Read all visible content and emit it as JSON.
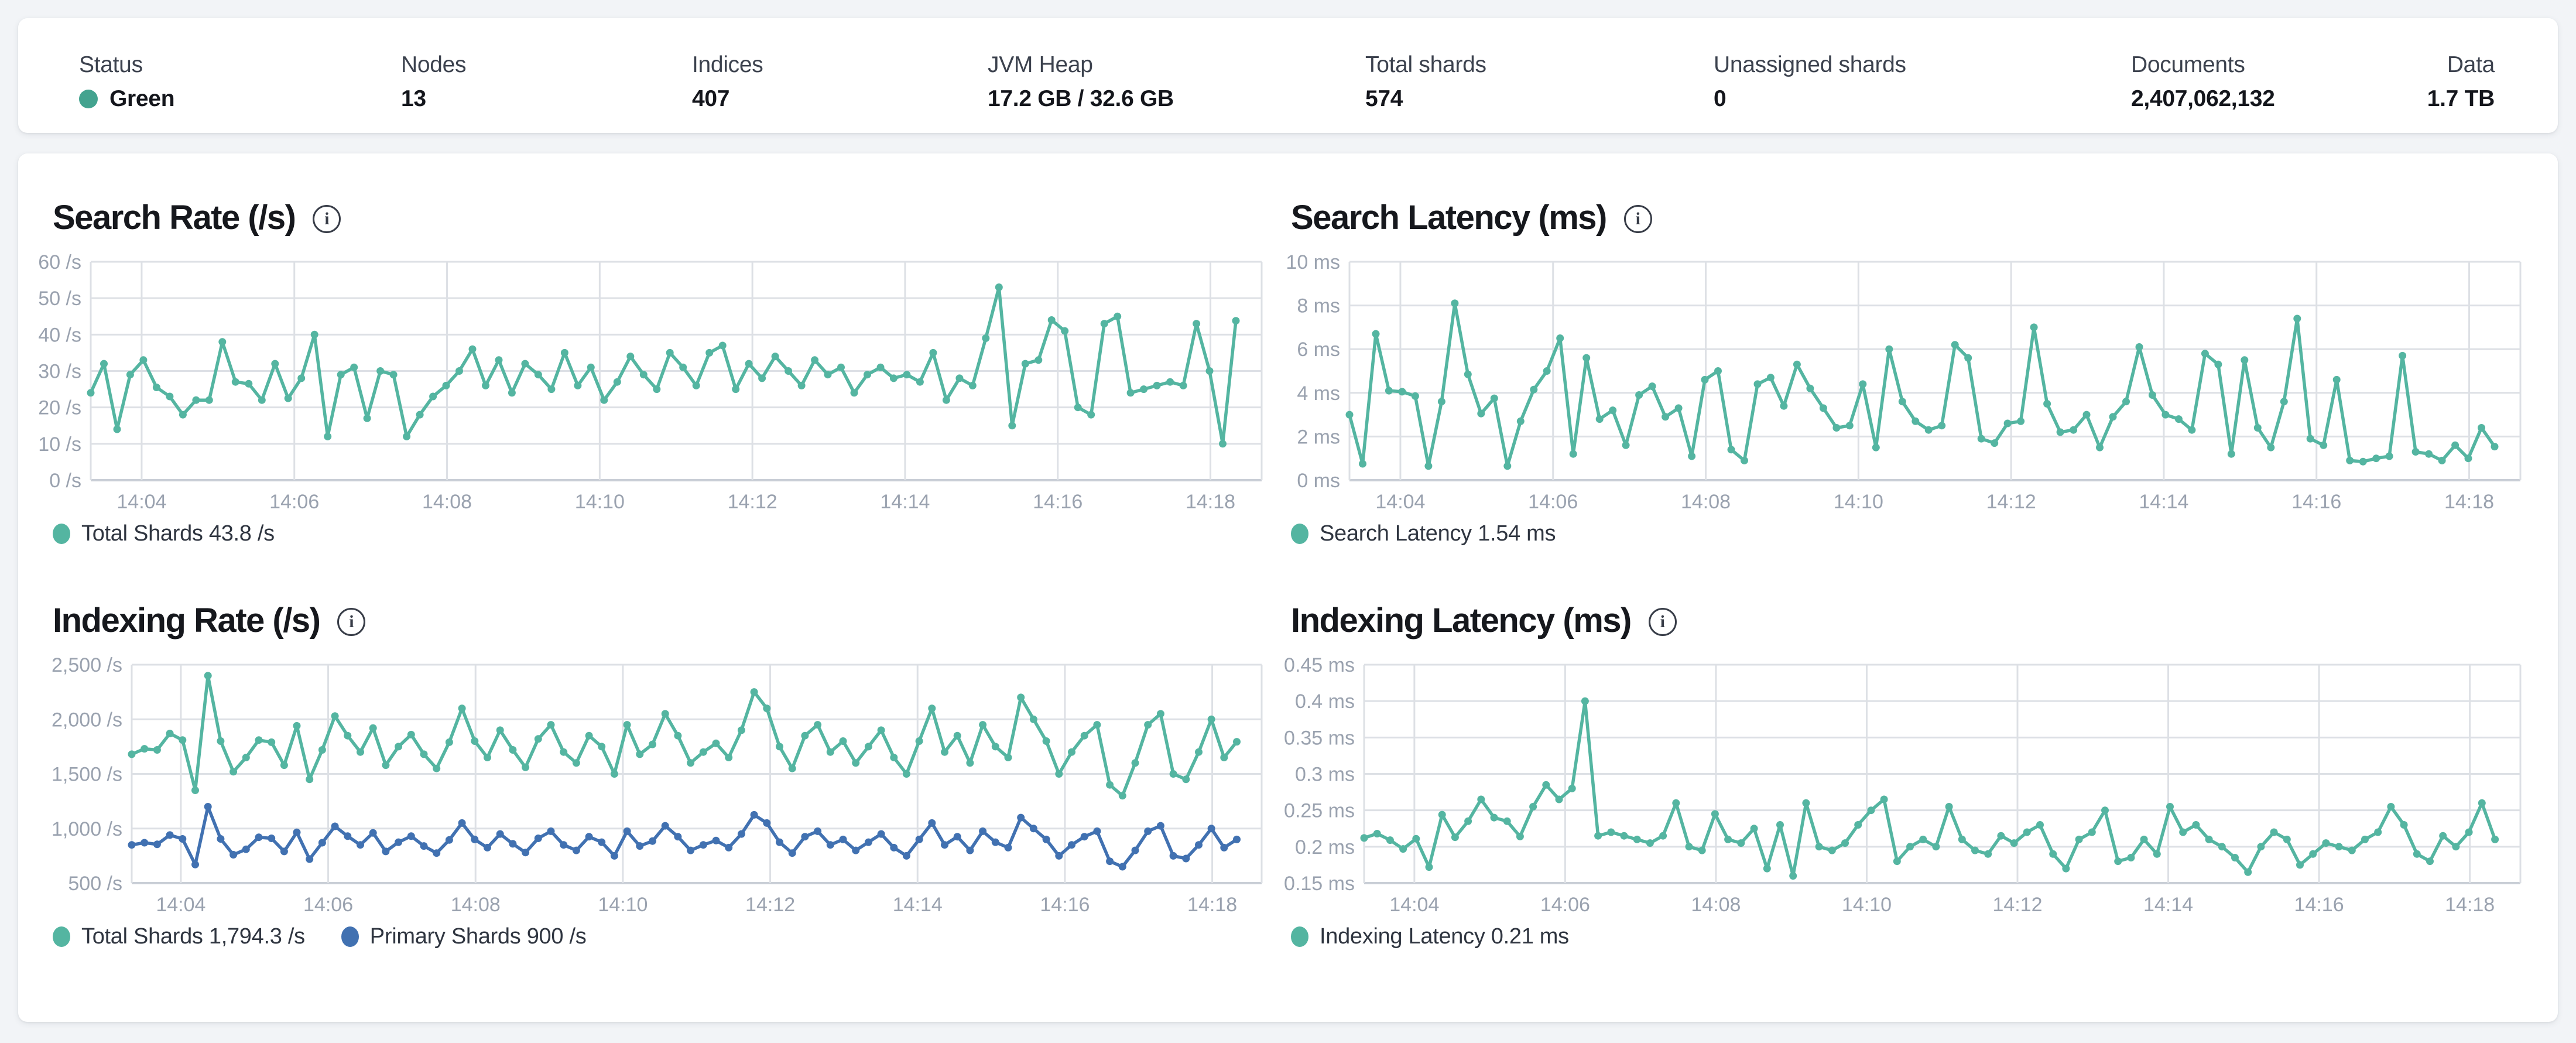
{
  "status_bar": {
    "items": [
      {
        "label": "Status",
        "value": "Green",
        "dot_color": "#43a38f"
      },
      {
        "label": "Nodes",
        "value": "13"
      },
      {
        "label": "Indices",
        "value": "407"
      },
      {
        "label": "JVM Heap",
        "value": "17.2 GB / 32.6 GB"
      },
      {
        "label": "Total shards",
        "value": "574"
      },
      {
        "label": "Unassigned shards",
        "value": "0"
      },
      {
        "label": "Documents",
        "value": "2,407,062,132"
      },
      {
        "label": "Data",
        "value": "1.7 TB"
      }
    ]
  },
  "colors": {
    "teal": "#54b5a1",
    "blue": "#4171b1",
    "grid": "#dde0e5",
    "axis": "#c9ced6",
    "tick_text": "#9aa2af"
  },
  "charts": [
    {
      "title": "Search Rate (/s)",
      "info_icon": "i",
      "chart_data": {
        "type": "line",
        "title": "Search Rate (/s)",
        "ylabel": "/s",
        "ylim": [
          0,
          60
        ],
        "x_start": "14:03:20",
        "x_end": "14:18:00",
        "interval_s": 10,
        "grid": true,
        "legend_position": "bottom",
        "x_ticks": [
          "14:04",
          "14:06",
          "14:08",
          "14:10",
          "14:12",
          "14:14",
          "14:16",
          "14:18"
        ],
        "y_ticks": [
          {
            "v": 0,
            "label": "0 /s"
          },
          {
            "v": 10,
            "label": "10 /s"
          },
          {
            "v": 20,
            "label": "20 /s"
          },
          {
            "v": 30,
            "label": "30 /s"
          },
          {
            "v": 40,
            "label": "40 /s"
          },
          {
            "v": 50,
            "label": "50 /s"
          },
          {
            "v": 60,
            "label": "60 /s"
          }
        ],
        "series": [
          {
            "name": "Total Shards",
            "legend": "Total Shards 43.8 /s",
            "current_value": "43.8 /s",
            "color": "#54b5a1",
            "values": [
              24,
              32,
              14,
              29,
              33,
              25.5,
              23,
              18,
              22,
              22,
              38,
              27,
              26.5,
              22,
              32,
              22.5,
              28,
              40,
              12,
              29,
              31,
              17,
              30,
              29,
              12,
              18,
              23,
              26,
              30,
              36,
              26,
              33,
              24,
              32,
              29,
              25,
              35,
              26,
              31,
              22,
              27,
              34,
              29,
              25,
              35,
              31,
              26,
              35,
              37,
              25,
              32,
              28,
              34,
              30,
              26,
              33,
              29,
              31,
              24,
              29,
              31,
              28,
              29,
              27,
              35,
              22,
              28,
              26,
              39,
              53,
              15,
              32,
              33,
              44,
              41,
              20,
              18,
              43,
              45,
              24,
              25,
              26,
              27,
              26,
              43,
              30,
              10,
              43.8
            ]
          }
        ]
      }
    },
    {
      "title": "Search Latency (ms)",
      "info_icon": "i",
      "chart_data": {
        "type": "line",
        "title": "Search Latency (ms)",
        "ylabel": "ms",
        "ylim": [
          0,
          10
        ],
        "x_start": "14:03:20",
        "x_end": "14:18:00",
        "interval_s": 10,
        "grid": true,
        "legend_position": "bottom",
        "x_ticks": [
          "14:04",
          "14:06",
          "14:08",
          "14:10",
          "14:12",
          "14:14",
          "14:16",
          "14:18"
        ],
        "y_ticks": [
          {
            "v": 0,
            "label": "0 ms"
          },
          {
            "v": 2,
            "label": "2 ms"
          },
          {
            "v": 4,
            "label": "4 ms"
          },
          {
            "v": 6,
            "label": "6 ms"
          },
          {
            "v": 8,
            "label": "8 ms"
          },
          {
            "v": 10,
            "label": "10 ms"
          }
        ],
        "series": [
          {
            "name": "Search Latency",
            "legend": "Search Latency 1.54 ms",
            "current_value": "1.54 ms",
            "color": "#54b5a1",
            "values": [
              3.0,
              0.75,
              6.7,
              4.1,
              4.05,
              3.85,
              0.65,
              3.6,
              8.1,
              4.85,
              3.05,
              3.75,
              0.65,
              2.7,
              4.15,
              5.0,
              6.5,
              1.2,
              5.6,
              2.8,
              3.2,
              1.6,
              3.9,
              4.3,
              2.9,
              3.3,
              1.1,
              4.6,
              5.0,
              1.4,
              0.9,
              4.4,
              4.7,
              3.4,
              5.3,
              4.2,
              3.3,
              2.4,
              2.5,
              4.4,
              1.5,
              6.0,
              3.6,
              2.7,
              2.3,
              2.5,
              6.2,
              5.6,
              1.9,
              1.7,
              2.6,
              2.7,
              7.0,
              3.5,
              2.2,
              2.3,
              3.0,
              1.5,
              2.9,
              3.6,
              6.1,
              3.9,
              3.0,
              2.8,
              2.3,
              5.8,
              5.3,
              1.2,
              5.5,
              2.4,
              1.5,
              3.6,
              7.4,
              1.9,
              1.6,
              4.6,
              0.9,
              0.85,
              1.0,
              1.1,
              5.7,
              1.3,
              1.2,
              0.9,
              1.6,
              1.0,
              2.4,
              1.54
            ]
          }
        ]
      }
    },
    {
      "title": "Indexing Rate (/s)",
      "info_icon": "i",
      "chart_data": {
        "type": "line",
        "title": "Indexing Rate (/s)",
        "ylabel": "/s",
        "ylim": [
          500,
          2500
        ],
        "x_start": "14:03:20",
        "x_end": "14:18:00",
        "interval_s": 10,
        "grid": true,
        "legend_position": "bottom",
        "x_ticks": [
          "14:04",
          "14:06",
          "14:08",
          "14:10",
          "14:12",
          "14:14",
          "14:16",
          "14:18"
        ],
        "y_ticks": [
          {
            "v": 500,
            "label": "500 /s"
          },
          {
            "v": 1000,
            "label": "1,000 /s"
          },
          {
            "v": 1500,
            "label": "1,500 /s"
          },
          {
            "v": 2000,
            "label": "2,000 /s"
          },
          {
            "v": 2500,
            "label": "2,500 /s"
          }
        ],
        "series": [
          {
            "name": "Total Shards",
            "legend": "Total Shards 1,794.3 /s",
            "current_value": "1,794.3 /s",
            "color": "#54b5a1",
            "values": [
              1680,
              1730,
              1720,
              1870,
              1810,
              1350,
              2400,
              1800,
              1520,
              1650,
              1810,
              1790,
              1580,
              1940,
              1450,
              1720,
              2030,
              1850,
              1700,
              1920,
              1580,
              1750,
              1860,
              1680,
              1550,
              1790,
              2100,
              1800,
              1650,
              1900,
              1720,
              1560,
              1820,
              1950,
              1700,
              1600,
              1850,
              1750,
              1500,
              1950,
              1680,
              1770,
              2050,
              1850,
              1600,
              1700,
              1780,
              1650,
              1900,
              2250,
              2100,
              1750,
              1550,
              1850,
              1950,
              1700,
              1800,
              1600,
              1750,
              1900,
              1650,
              1500,
              1800,
              2100,
              1700,
              1850,
              1600,
              1950,
              1750,
              1650,
              2200,
              2000,
              1800,
              1500,
              1700,
              1850,
              1950,
              1400,
              1300,
              1600,
              1950,
              2050,
              1500,
              1450,
              1700,
              2000,
              1650,
              1794.3
            ]
          },
          {
            "name": "Primary Shards",
            "legend": "Primary Shards 900 /s",
            "current_value": "900 /s",
            "color": "#4171b1",
            "values": [
              850,
              870,
              855,
              940,
              905,
              670,
              1200,
              905,
              760,
              810,
              920,
              910,
              790,
              965,
              720,
              870,
              1020,
              930,
              850,
              960,
              790,
              875,
              930,
              840,
              775,
              895,
              1050,
              900,
              825,
              950,
              860,
              780,
              910,
              975,
              850,
              800,
              925,
              875,
              750,
              975,
              840,
              885,
              1025,
              925,
              800,
              850,
              890,
              825,
              950,
              1125,
              1050,
              875,
              775,
              925,
              975,
              850,
              900,
              800,
              875,
              950,
              825,
              750,
              900,
              1050,
              850,
              925,
              800,
              975,
              875,
              825,
              1100,
              1000,
              900,
              750,
              850,
              925,
              975,
              700,
              650,
              800,
              975,
              1025,
              750,
              725,
              850,
              1000,
              825,
              900
            ]
          }
        ]
      }
    },
    {
      "title": "Indexing Latency (ms)",
      "info_icon": "i",
      "chart_data": {
        "type": "line",
        "title": "Indexing Latency (ms)",
        "ylabel": "ms",
        "ylim": [
          0.15,
          0.45
        ],
        "x_start": "14:03:20",
        "x_end": "14:18:00",
        "interval_s": 10,
        "grid": true,
        "legend_position": "bottom",
        "x_ticks": [
          "14:04",
          "14:06",
          "14:08",
          "14:10",
          "14:12",
          "14:14",
          "14:16",
          "14:18"
        ],
        "y_ticks": [
          {
            "v": 0.15,
            "label": "0.15 ms"
          },
          {
            "v": 0.2,
            "label": "0.2 ms"
          },
          {
            "v": 0.25,
            "label": "0.25 ms"
          },
          {
            "v": 0.3,
            "label": "0.3 ms"
          },
          {
            "v": 0.35,
            "label": "0.35 ms"
          },
          {
            "v": 0.4,
            "label": "0.4 ms"
          },
          {
            "v": 0.45,
            "label": "0.45 ms"
          }
        ],
        "series": [
          {
            "name": "Indexing Latency",
            "legend": "Indexing Latency 0.21 ms",
            "current_value": "0.21 ms",
            "color": "#54b5a1",
            "values": [
              0.212,
              0.218,
              0.209,
              0.197,
              0.211,
              0.172,
              0.244,
              0.213,
              0.235,
              0.265,
              0.24,
              0.235,
              0.214,
              0.255,
              0.285,
              0.265,
              0.28,
              0.4,
              0.215,
              0.22,
              0.215,
              0.21,
              0.205,
              0.215,
              0.26,
              0.2,
              0.195,
              0.245,
              0.21,
              0.205,
              0.225,
              0.17,
              0.23,
              0.16,
              0.26,
              0.2,
              0.195,
              0.205,
              0.23,
              0.25,
              0.265,
              0.18,
              0.2,
              0.21,
              0.2,
              0.255,
              0.21,
              0.195,
              0.19,
              0.215,
              0.205,
              0.22,
              0.23,
              0.19,
              0.17,
              0.21,
              0.22,
              0.25,
              0.18,
              0.185,
              0.21,
              0.19,
              0.255,
              0.22,
              0.23,
              0.21,
              0.2,
              0.185,
              0.165,
              0.2,
              0.22,
              0.21,
              0.175,
              0.19,
              0.205,
              0.2,
              0.195,
              0.21,
              0.22,
              0.255,
              0.23,
              0.19,
              0.18,
              0.215,
              0.2,
              0.22,
              0.26,
              0.21
            ]
          }
        ]
      }
    }
  ]
}
